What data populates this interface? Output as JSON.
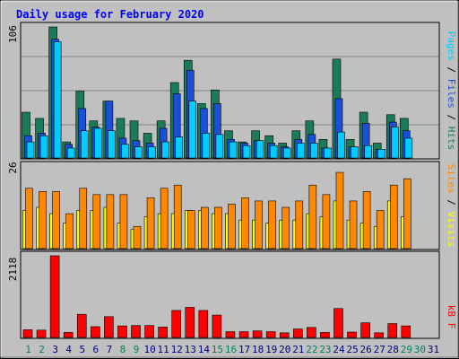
{
  "chart_data": {
    "type": "bar",
    "title": "Daily usage for February 2020",
    "categories": [
      "1",
      "2",
      "3",
      "4",
      "5",
      "6",
      "7",
      "8",
      "9",
      "10",
      "11",
      "12",
      "13",
      "14",
      "15",
      "16",
      "17",
      "18",
      "19",
      "20",
      "21",
      "22",
      "23",
      "24",
      "25",
      "26",
      "27",
      "28",
      "29",
      "30",
      "31"
    ],
    "weekend_days": [
      "1",
      "2",
      "8",
      "9",
      "15",
      "16",
      "22",
      "23",
      "29",
      "30"
    ],
    "panels": [
      {
        "id": "top",
        "ymax_label": "106",
        "ymax": 106,
        "right_labels": [
          "Pages",
          "Files",
          "Hits"
        ],
        "series": [
          {
            "name": "Hits",
            "color": "#1b7b58",
            "values": [
              37,
              32,
              106,
              13,
              54,
              30,
              46,
              32,
              30,
              20,
              30,
              61,
              79,
              44,
              55,
              22,
              13,
              22,
              18,
              12,
              22,
              30,
              15,
              80,
              15,
              37,
              12,
              35,
              32,
              0,
              0
            ]
          },
          {
            "name": "Files",
            "color": "#1a4fd8",
            "values": [
              18,
              20,
              96,
              11,
              40,
              25,
              46,
              16,
              14,
              12,
              24,
              52,
              71,
              40,
              44,
              15,
              12,
              14,
              12,
              9,
              15,
              19,
              8,
              48,
              9,
              28,
              7,
              29,
              22,
              0,
              0
            ]
          },
          {
            "name": "Pages",
            "color": "#00ccff",
            "values": [
              13,
              18,
              94,
              8,
              22,
              24,
              22,
              11,
              9,
              9,
              13,
              17,
              46,
              20,
              19,
              13,
              10,
              14,
              10,
              8,
              12,
              12,
              8,
              21,
              9,
              10,
              7,
              25,
              16,
              0,
              0
            ]
          }
        ]
      },
      {
        "id": "middle",
        "ymax_label": "26",
        "ymax": 26,
        "right_labels": [
          "Sites",
          "Visits"
        ],
        "series": [
          {
            "name": "Visits",
            "color": "#ffff00",
            "values": [
              12,
              13,
              11,
              8,
              12,
              12,
              13,
              8,
              6,
              10,
              11,
              11,
              12,
              12,
              11,
              11,
              9,
              9,
              8,
              9,
              9,
              11,
              10,
              15,
              9,
              8,
              7,
              15,
              10,
              0,
              0
            ]
          },
          {
            "name": "Sites",
            "color": "#ff8800",
            "values": [
              19,
              18,
              18,
              11,
              19,
              17,
              17,
              17,
              7,
              16,
              19,
              20,
              12,
              13,
              13,
              14,
              16,
              15,
              15,
              13,
              15,
              20,
              17,
              24,
              15,
              18,
              12,
              20,
              22,
              0,
              0
            ]
          }
        ]
      },
      {
        "id": "bottom",
        "ymax_label": "2118",
        "ymax": 2118,
        "right_labels": [
          "kB F"
        ],
        "series": [
          {
            "name": "kB F",
            "color": "#ff0000",
            "values": [
              200,
              190,
              2118,
              130,
              600,
              280,
              540,
              300,
              310,
              310,
              270,
              700,
              780,
              700,
              580,
              150,
              150,
              170,
              150,
              120,
              220,
              260,
              130,
              750,
              140,
              380,
              120,
              360,
              300,
              0,
              0
            ]
          }
        ]
      }
    ],
    "colors": {
      "background": "#c0c0c0",
      "grid": "#808080",
      "title": "#0000ff",
      "day_default": "#000080",
      "day_weekend": "#00805c",
      "hits": "#1b7b58",
      "files": "#1a4fd8",
      "pages": "#00ccff",
      "visits": "#ffff00",
      "sites": "#ff8800",
      "kbf": "#ff0000"
    }
  }
}
